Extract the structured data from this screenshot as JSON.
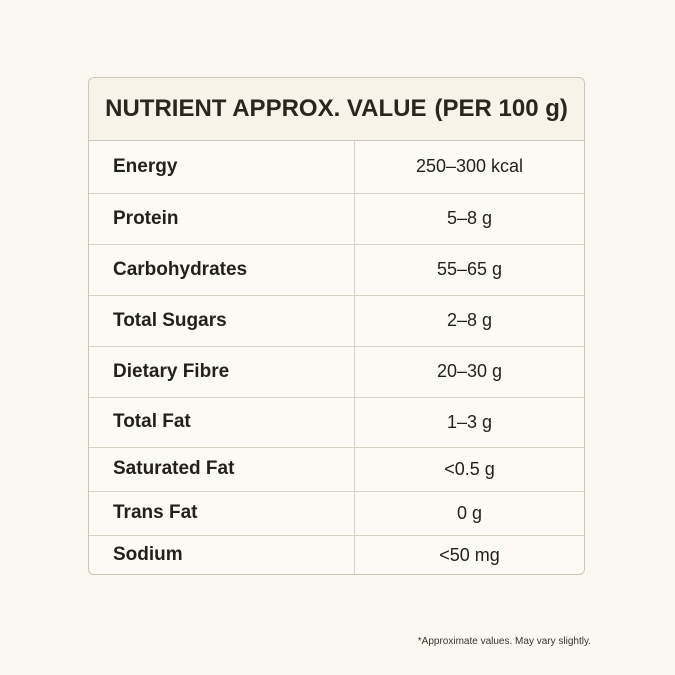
{
  "header": {
    "title": "NUTRIENT APPROX. VALUE",
    "subtitle": "(PER 100 g)"
  },
  "table": {
    "rows": [
      [
        "Energy",
        "250–300 kcal"
      ],
      [
        "Protein",
        "5–8 g"
      ],
      [
        "Carbohydrates",
        "55–65 g"
      ],
      [
        "Total Sugars",
        "2–8 g"
      ],
      [
        "Dietary Fibre",
        "20–30 g"
      ],
      [
        "Total Fat",
        "1–3 g"
      ],
      [
        "Saturated Fat",
        "<0.5 g"
      ],
      [
        "Trans Fat",
        "0 g"
      ],
      [
        "Sodium",
        "<50 mg"
      ]
    ]
  },
  "footnote": "*Approximate values. May vary slightly."
}
